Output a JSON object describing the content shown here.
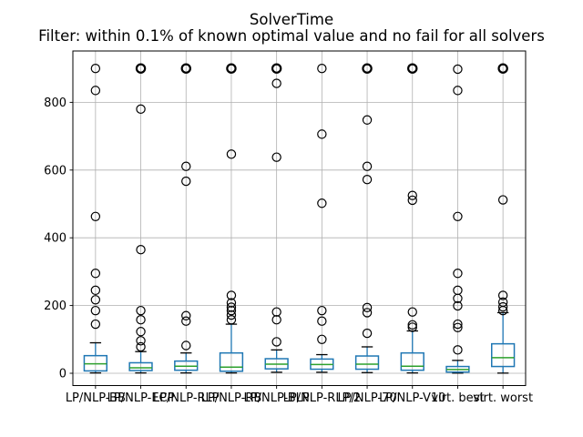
{
  "colors": {
    "box": "#1f77b4",
    "median": "#2ca02c",
    "whisker": "#1f77b4",
    "cap": "#000000",
    "outlier": "#000000",
    "grid": "#b0b0b0",
    "spine": "#000000",
    "text": "#000000",
    "background": "#ffffff"
  },
  "chart_data": {
    "type": "boxplot",
    "title": "SolverTime",
    "subtitle": "Filter: within 0.1% of known optimal value and no fail for all solvers",
    "xlabel": "",
    "ylabel": "",
    "ylim": [
      -37,
      951
    ],
    "yticks": [
      0,
      200,
      400,
      600,
      800
    ],
    "ytick_labels": [
      "0",
      "200",
      "400",
      "600",
      "800"
    ],
    "grid": true,
    "time_limit_cap": 900,
    "categories": [
      "LP/NLP-BB",
      "LP/NLP-ECP",
      "LP/NLP-RLP",
      "LP/NLP-RB",
      "LP/NLP-BLP",
      "LP/NLP-RLP/2",
      "LP/NLP-70",
      "LP/NLP-V10",
      "virt. best",
      "virt. worst"
    ],
    "boxes": [
      {
        "label": "LP/NLP-BB",
        "whislo": 1,
        "q1": 7,
        "med": 28,
        "q3": 52,
        "whishi": 90,
        "outliers": [
          145,
          185,
          217,
          245,
          295,
          463,
          835,
          900
        ],
        "cap_bold": false
      },
      {
        "label": "LP/NLP-ECP",
        "whislo": 1,
        "q1": 8,
        "med": 16,
        "q3": 31,
        "whishi": 64,
        "outliers": [
          78,
          96,
          123,
          158,
          185,
          365,
          780,
          900
        ],
        "cap_bold": true
      },
      {
        "label": "LP/NLP-RLP",
        "whislo": 1,
        "q1": 9,
        "med": 21,
        "q3": 36,
        "whishi": 60,
        "outliers": [
          82,
          154,
          170,
          567,
          611,
          900
        ],
        "cap_bold": true
      },
      {
        "label": "LP/NLP-RB",
        "whislo": 1,
        "q1": 6,
        "med": 18,
        "q3": 60,
        "whishi": 145,
        "outliers": [
          158,
          172,
          185,
          195,
          208,
          230,
          647,
          900
        ],
        "cap_bold": true
      },
      {
        "label": "LP/NLP-BLP",
        "whislo": 3,
        "q1": 13,
        "med": 27,
        "q3": 43,
        "whishi": 69,
        "outliers": [
          93,
          158,
          181,
          638,
          856,
          900
        ],
        "cap_bold": true
      },
      {
        "label": "LP/NLP-RLP/2",
        "whislo": 3,
        "q1": 12,
        "med": 26,
        "q3": 42,
        "whishi": 55,
        "outliers": [
          100,
          154,
          185,
          502,
          706,
          900
        ],
        "cap_bold": false
      },
      {
        "label": "LP/NLP-70",
        "whislo": 2,
        "q1": 12,
        "med": 27,
        "q3": 51,
        "whishi": 78,
        "outliers": [
          118,
          179,
          194,
          572,
          611,
          748,
          900
        ],
        "cap_bold": true
      },
      {
        "label": "LP/NLP-V10",
        "whislo": 1,
        "q1": 9,
        "med": 21,
        "q3": 60,
        "whishi": 125,
        "outliers": [
          136,
          143,
          181,
          511,
          525,
          900
        ],
        "cap_bold": true
      },
      {
        "label": "virt. best",
        "whislo": 0.5,
        "q1": 3.5,
        "med": 11,
        "q3": 20,
        "whishi": 38,
        "outliers": [
          69,
          135,
          145,
          199,
          221,
          245,
          295,
          463,
          835,
          898
        ],
        "cap_bold": false
      },
      {
        "label": "virt. worst",
        "whislo": 0.5,
        "q1": 20,
        "med": 46,
        "q3": 87,
        "whishi": 179,
        "outliers": [
          185,
          196,
          210,
          230,
          512,
          900
        ],
        "cap_bold": true
      }
    ]
  }
}
